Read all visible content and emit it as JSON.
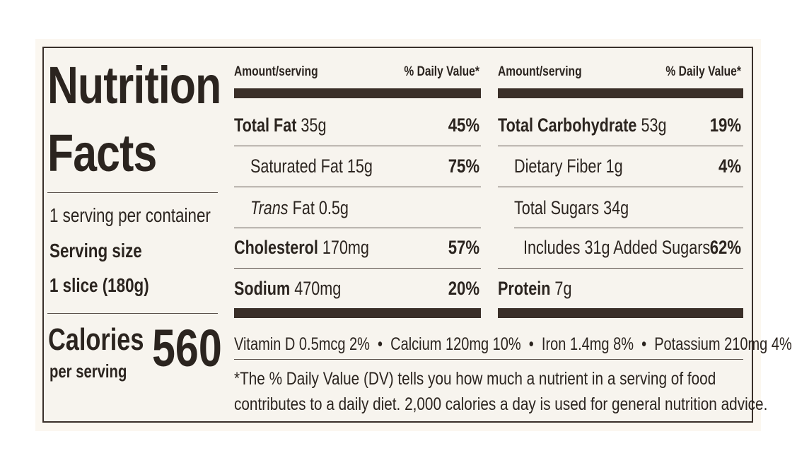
{
  "label": {
    "title_line1": "Nutrition",
    "title_line2": "Facts",
    "servings_per_container": "1 serving per container",
    "serving_size_label": "Serving size",
    "serving_size_value": "1 slice (180g)",
    "calories_label": "Calories",
    "calories_sub": "per serving",
    "calories_value": "560"
  },
  "headers": {
    "amount": "Amount/serving",
    "dv": "% Daily Value*"
  },
  "left_rows": [
    {
      "name": "Total Fat",
      "amount": "35g",
      "dv": "45%"
    },
    {
      "name": "Saturated Fat",
      "amount": "15g",
      "dv": "75%"
    },
    {
      "name": "Trans",
      "amount": "Fat 0.5g",
      "dv": ""
    },
    {
      "name": "Cholesterol",
      "amount": "170mg",
      "dv": "57%"
    },
    {
      "name": "Sodium",
      "amount": "470mg",
      "dv": "20%"
    }
  ],
  "right_rows": [
    {
      "name": "Total Carbohydrate",
      "amount": "53g",
      "dv": "19%"
    },
    {
      "name": "Dietary Fiber",
      "amount": "1g",
      "dv": "4%"
    },
    {
      "name": "Total Sugars",
      "amount": "34g",
      "dv": ""
    },
    {
      "name": "Includes 31g Added Sugars",
      "amount": "",
      "dv": "62%"
    },
    {
      "name": "Protein",
      "amount": "7g",
      "dv": ""
    }
  ],
  "vitamins": "Vitamin D 0.5mcg 2%  •  Calcium 120mg 10%  •  Iron 1.4mg 8%  •  Potassium 210mg 4%",
  "footnote_line1": "*The % Daily Value (DV) tells you how much a nutrient in a serving of food",
  "footnote_line2": "contributes to a daily diet. 2,000 calories a day is used for general nutrition advice."
}
